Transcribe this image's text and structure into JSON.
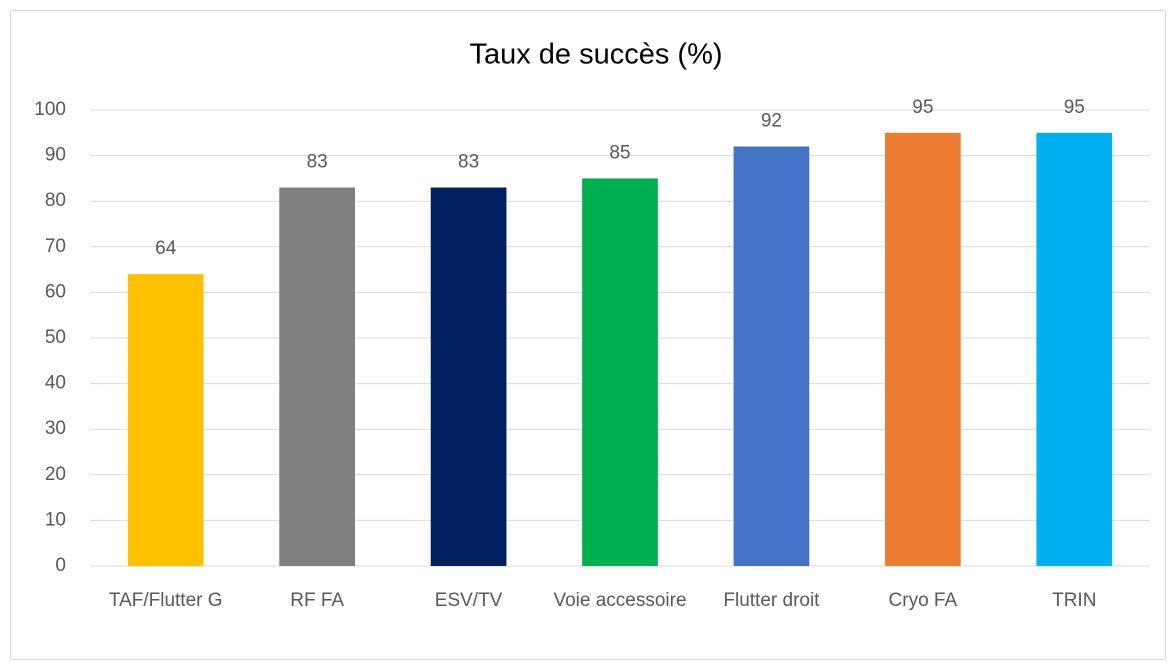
{
  "chart_data": {
    "type": "bar",
    "title": "Taux de succès (%)",
    "categories": [
      "TAF/Flutter G",
      "RF FA",
      "ESV/TV",
      "Voie accessoire",
      "Flutter droit",
      "Cryo FA",
      "TRIN"
    ],
    "values": [
      64,
      83,
      83,
      85,
      92,
      95,
      95
    ],
    "colors": [
      "#ffc000",
      "#808080",
      "#002060",
      "#00b050",
      "#4472c4",
      "#ed7d31",
      "#00b0f0"
    ],
    "ylim": [
      0,
      100
    ],
    "yticks": [
      0,
      10,
      20,
      30,
      40,
      50,
      60,
      70,
      80,
      90,
      100
    ],
    "grid": true
  }
}
